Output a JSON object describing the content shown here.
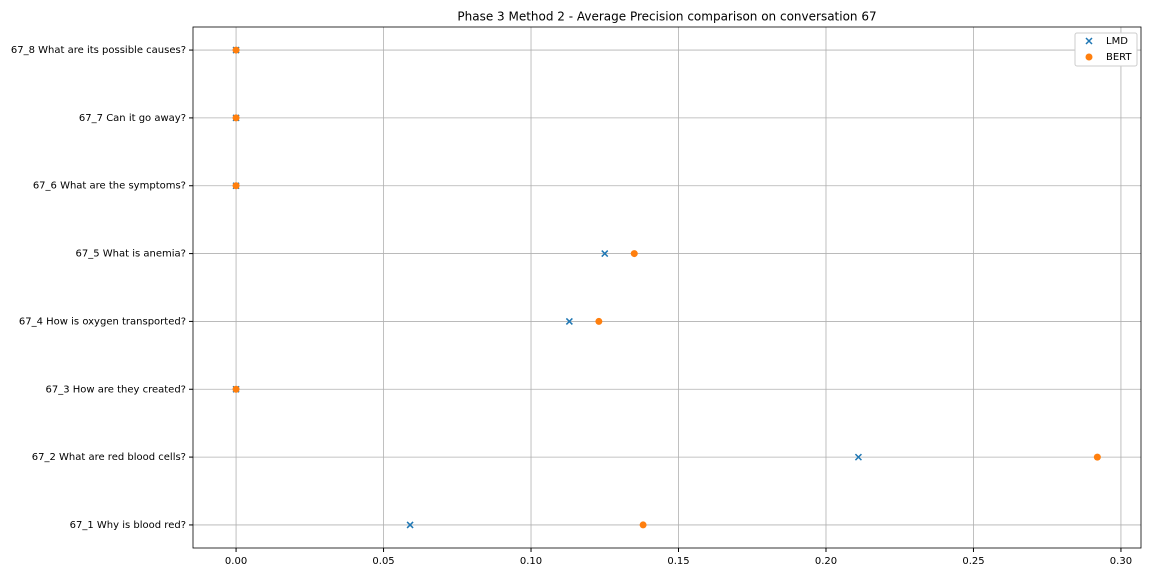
{
  "chart_data": {
    "type": "scatter",
    "title": "Phase 3 Method 2 - Average Precision comparison on conversation 67",
    "categories": [
      "67_1 Why is blood red?",
      "67_2 What are red blood cells?",
      "67_3 How are they created?",
      "67_4 How is oxygen transported?",
      "67_5 What is anemia?",
      "67_6 What are the symptoms?",
      "67_7 Can it go away?",
      "67_8 What are its possible causes?"
    ],
    "series": [
      {
        "name": "LMD",
        "color": "#1f77b4",
        "marker": "x",
        "values": [
          0.059,
          0.211,
          0,
          0.113,
          0.125,
          0,
          0,
          0
        ]
      },
      {
        "name": "BERT",
        "color": "#ff7f0e",
        "marker": "o",
        "values": [
          0.138,
          0.292,
          0,
          0.123,
          0.135,
          0,
          0,
          0
        ]
      }
    ],
    "xlim": [
      -0.0146,
      0.3068
    ],
    "xticks": [
      {
        "value": 0,
        "label": "0.00"
      },
      0.05,
      {
        "value": 0.1,
        "label": "0.10"
      },
      0.15,
      {
        "value": 0.2,
        "label": "0.20"
      },
      0.25,
      {
        "value": 0.3,
        "label": "0.30"
      }
    ],
    "grid": true,
    "legend": "upper right"
  }
}
